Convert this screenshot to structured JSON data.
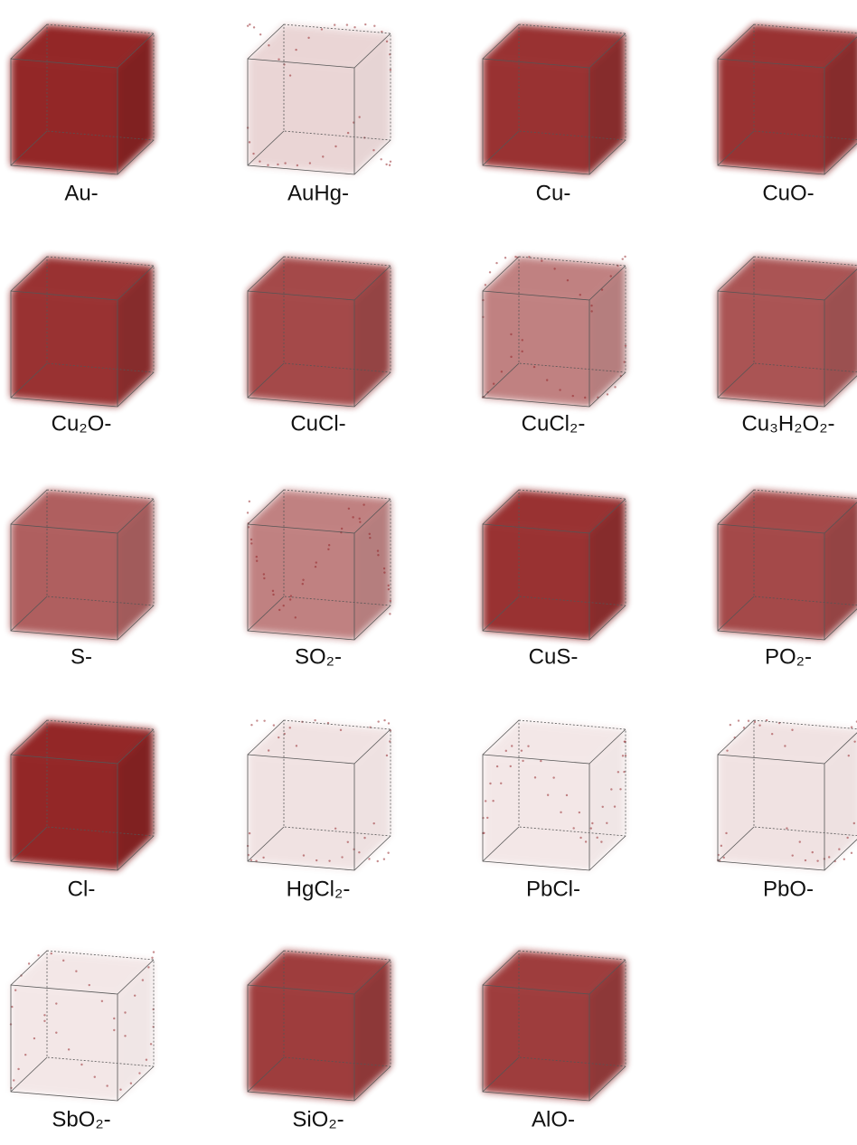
{
  "panels": [
    {
      "label": "Au-"
    },
    {
      "label": "AuHg-"
    },
    {
      "label": "Cu-"
    },
    {
      "label": "CuO-"
    },
    {
      "label": "Cu₂O-"
    },
    {
      "label": "CuCl-"
    },
    {
      "label": "CuCl₂-"
    },
    {
      "label": "Cu₃H₂O₂-"
    },
    {
      "label": "S-"
    },
    {
      "label": "SO₂-"
    },
    {
      "label": "CuS-"
    },
    {
      "label": "PO₂-"
    },
    {
      "label": "Cl-"
    },
    {
      "label": "HgCl₂-"
    },
    {
      "label": "PbCl-"
    },
    {
      "label": "PbO-"
    },
    {
      "label": "SbO₂-"
    },
    {
      "label": "SiO₂-"
    },
    {
      "label": "AlO-"
    }
  ]
}
